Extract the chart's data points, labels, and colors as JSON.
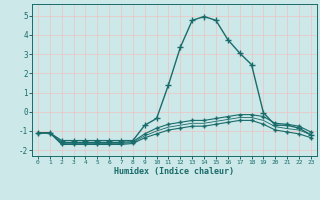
{
  "xlabel": "Humidex (Indice chaleur)",
  "xlim": [
    -0.5,
    23.5
  ],
  "ylim": [
    -2.3,
    5.6
  ],
  "xticks": [
    0,
    1,
    2,
    3,
    4,
    5,
    6,
    7,
    8,
    9,
    10,
    11,
    12,
    13,
    14,
    15,
    16,
    17,
    18,
    19,
    20,
    21,
    22,
    23
  ],
  "yticks": [
    -2,
    -1,
    0,
    1,
    2,
    3,
    4,
    5
  ],
  "background_color": "#cce8e8",
  "grid_color": "#e8c8c8",
  "line_color": "#1a6b6b",
  "lines": [
    {
      "x": [
        0,
        1,
        2,
        3,
        4,
        5,
        6,
        7,
        8,
        9,
        10,
        11,
        12,
        13,
        14,
        15,
        16,
        17,
        18,
        19,
        20,
        21,
        22,
        23
      ],
      "y": [
        -1.1,
        -1.1,
        -1.5,
        -1.5,
        -1.5,
        -1.5,
        -1.5,
        -1.5,
        -1.5,
        -0.7,
        -0.35,
        1.4,
        3.35,
        4.75,
        4.95,
        4.75,
        3.75,
        3.05,
        2.45,
        -0.05,
        -0.7,
        -0.7,
        -0.85,
        -1.2
      ],
      "marker": "+",
      "markersize": 4,
      "linewidth": 1.0,
      "has_marker": true
    },
    {
      "x": [
        0,
        1,
        2,
        3,
        4,
        5,
        6,
        7,
        8,
        9,
        10,
        11,
        12,
        13,
        14,
        15,
        16,
        17,
        18,
        19,
        20,
        21,
        22,
        23
      ],
      "y": [
        -1.1,
        -1.1,
        -1.6,
        -1.6,
        -1.6,
        -1.6,
        -1.6,
        -1.6,
        -1.55,
        -1.15,
        -0.85,
        -0.65,
        -0.55,
        -0.45,
        -0.45,
        -0.35,
        -0.25,
        -0.15,
        -0.15,
        -0.25,
        -0.6,
        -0.65,
        -0.75,
        -1.05
      ],
      "marker": "+",
      "markersize": 3,
      "linewidth": 0.8,
      "has_marker": true
    },
    {
      "x": [
        0,
        1,
        2,
        3,
        4,
        5,
        6,
        7,
        8,
        9,
        10,
        11,
        12,
        13,
        14,
        15,
        16,
        17,
        18,
        19,
        20,
        21,
        22,
        23
      ],
      "y": [
        -1.1,
        -1.1,
        -1.7,
        -1.7,
        -1.7,
        -1.7,
        -1.7,
        -1.7,
        -1.65,
        -1.35,
        -1.15,
        -0.95,
        -0.85,
        -0.75,
        -0.75,
        -0.65,
        -0.55,
        -0.45,
        -0.45,
        -0.65,
        -0.95,
        -1.05,
        -1.15,
        -1.35
      ],
      "marker": "+",
      "markersize": 3,
      "linewidth": 0.8,
      "has_marker": true
    },
    {
      "x": [
        0,
        1,
        2,
        3,
        4,
        5,
        6,
        7,
        8,
        9,
        10,
        11,
        12,
        13,
        14,
        15,
        16,
        17,
        18,
        19,
        20,
        21,
        22,
        23
      ],
      "y": [
        -1.1,
        -1.1,
        -1.65,
        -1.65,
        -1.65,
        -1.65,
        -1.65,
        -1.65,
        -1.6,
        -1.25,
        -1.0,
        -0.8,
        -0.7,
        -0.6,
        -0.6,
        -0.5,
        -0.4,
        -0.3,
        -0.3,
        -0.45,
        -0.775,
        -0.875,
        -0.95,
        -1.2
      ],
      "marker": null,
      "markersize": 0,
      "linewidth": 0.6,
      "has_marker": false
    }
  ]
}
